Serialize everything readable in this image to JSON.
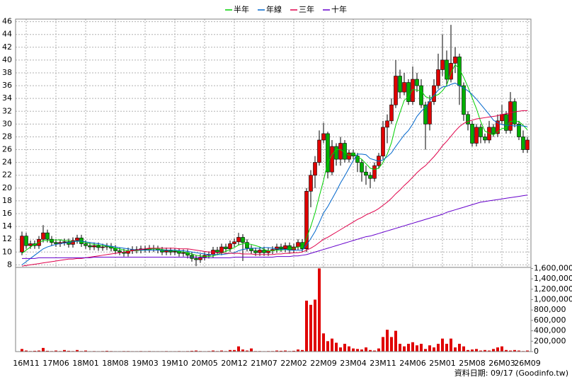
{
  "chart_data": {
    "type": "candlestick",
    "legend": "top",
    "grid": true,
    "footer": "資料日期: 09/17 (Goodinfo.tw)",
    "up_color": "#e00000",
    "down_color": "#00b000",
    "categories": [
      null,
      "16M11",
      null,
      null,
      null,
      null,
      null,
      null,
      "17M06",
      null,
      null,
      null,
      null,
      null,
      null,
      "18M01",
      null,
      null,
      null,
      null,
      null,
      null,
      "18M08",
      null,
      null,
      null,
      null,
      null,
      null,
      "19M03",
      null,
      null,
      null,
      null,
      null,
      null,
      "19M10",
      null,
      null,
      null,
      null,
      null,
      null,
      "20M05",
      null,
      null,
      null,
      null,
      null,
      null,
      "20M12",
      null,
      null,
      null,
      null,
      null,
      null,
      "21M07",
      null,
      null,
      null,
      null,
      null,
      null,
      "22M02",
      null,
      null,
      null,
      null,
      null,
      null,
      "22M09",
      null,
      null,
      null,
      null,
      null,
      null,
      "23M04",
      null,
      null,
      null,
      null,
      null,
      null,
      "23M11",
      null,
      null,
      null,
      null,
      null,
      null,
      "24M06",
      null,
      null,
      null,
      null,
      null,
      null,
      "25M01",
      null,
      null,
      null,
      null,
      null,
      null,
      "25M08",
      null,
      null,
      null,
      null,
      null,
      null,
      "26M03",
      null,
      null,
      null,
      null,
      null,
      "26M09"
    ],
    "open": [
      10.0,
      12.5,
      11.0,
      11.3,
      11.0,
      12.0,
      13.0,
      12.0,
      11.5,
      11.3,
      11.5,
      11.6,
      11.2,
      11.8,
      12.2,
      11.3,
      11.0,
      10.8,
      11.0,
      10.7,
      10.8,
      10.9,
      10.6,
      10.2,
      10.0,
      9.8,
      10.2,
      10.4,
      10.3,
      10.5,
      10.4,
      10.6,
      10.5,
      10.3,
      10.0,
      10.2,
      10.0,
      10.1,
      9.8,
      9.9,
      9.5,
      9.0,
      8.8,
      9.2,
      9.5,
      9.6,
      10.3,
      10.0,
      10.8,
      10.5,
      11.3,
      11.6,
      12.3,
      11.5,
      10.6,
      10.2,
      9.9,
      10.3,
      9.9,
      10.2,
      10.4,
      10.8,
      10.5,
      11.0,
      10.3,
      10.8,
      11.5,
      10.5,
      19.5,
      22.0,
      24.0,
      27.5,
      28.5,
      22.5,
      26.5,
      24.5,
      27.0,
      24.5,
      25.5,
      25.0,
      24.0,
      22.5,
      22.0,
      21.5,
      23.5,
      25.0,
      29.5,
      30.5,
      33.0,
      37.5,
      35.0,
      36.5,
      33.5,
      37.0,
      36.0,
      33.0,
      30.0,
      33.5,
      36.0,
      38.5,
      40.0,
      37.0,
      39.5,
      40.5,
      36.0,
      31.5,
      30.0,
      27.0,
      29.5,
      28.0,
      27.5,
      29.5,
      28.5,
      30.5,
      31.5,
      29.0,
      33.5,
      30.0,
      28.0,
      26.0
    ],
    "high": [
      13.2,
      13.0,
      11.8,
      11.8,
      12.5,
      14.2,
      13.5,
      12.5,
      12.0,
      12.0,
      12.1,
      12.1,
      12.3,
      12.7,
      12.7,
      11.8,
      11.5,
      11.5,
      11.5,
      11.3,
      11.4,
      11.4,
      11.1,
      10.7,
      10.5,
      10.7,
      10.9,
      10.9,
      11.0,
      11.0,
      11.1,
      11.1,
      11.0,
      10.8,
      10.7,
      10.7,
      10.6,
      10.6,
      10.4,
      10.4,
      10.0,
      9.5,
      9.7,
      10.0,
      10.1,
      10.8,
      10.8,
      11.3,
      11.3,
      11.8,
      12.1,
      13.0,
      12.8,
      12.0,
      11.1,
      10.7,
      10.8,
      10.8,
      10.7,
      10.9,
      11.3,
      11.3,
      11.5,
      11.5,
      11.3,
      12.0,
      12.0,
      20.0,
      22.8,
      25.0,
      29.0,
      30.2,
      28.8,
      27.5,
      27.0,
      28.0,
      27.5,
      26.0,
      26.0,
      25.5,
      24.5,
      23.5,
      22.5,
      24.0,
      25.5,
      30.5,
      31.5,
      34.0,
      40.0,
      38.5,
      38.0,
      37.0,
      39.0,
      38.0,
      37.0,
      33.5,
      34.5,
      37.0,
      41.0,
      44.0,
      41.5,
      45.5,
      42.0,
      41.0,
      36.5,
      32.0,
      30.5,
      30.0,
      30.0,
      28.5,
      30.5,
      30.0,
      31.5,
      33.0,
      32.0,
      35.0,
      34.0,
      30.5,
      29.0,
      28.0
    ],
    "low": [
      9.5,
      10.5,
      10.5,
      10.5,
      10.5,
      11.5,
      11.5,
      11.0,
      10.8,
      10.8,
      11.0,
      10.7,
      10.7,
      11.3,
      10.8,
      10.5,
      10.3,
      10.3,
      10.2,
      10.2,
      10.3,
      10.1,
      9.7,
      9.5,
      9.3,
      9.3,
      9.7,
      9.8,
      9.8,
      9.9,
      9.9,
      10.0,
      9.8,
      9.5,
      9.5,
      9.5,
      9.5,
      9.3,
      9.3,
      9.0,
      8.5,
      7.8,
      8.3,
      8.7,
      9.0,
      9.1,
      9.5,
      9.5,
      10.0,
      10.0,
      10.8,
      11.1,
      8.6,
      10.1,
      9.7,
      9.4,
      9.4,
      9.4,
      9.4,
      9.7,
      9.9,
      10.0,
      10.0,
      9.8,
      9.8,
      10.3,
      10.0,
      10.0,
      17.0,
      20.0,
      23.5,
      27.0,
      21.5,
      22.0,
      23.5,
      23.5,
      24.0,
      24.0,
      24.5,
      22.5,
      21.0,
      20.5,
      20.0,
      21.0,
      23.0,
      24.5,
      27.0,
      30.0,
      32.5,
      34.0,
      34.5,
      33.0,
      33.0,
      35.0,
      32.5,
      26.0,
      29.0,
      33.0,
      35.5,
      37.5,
      36.0,
      36.5,
      38.0,
      33.0,
      30.5,
      29.0,
      26.5,
      26.5,
      27.0,
      27.0,
      27.0,
      28.0,
      28.0,
      30.0,
      28.5,
      28.5,
      29.5,
      27.5,
      25.5,
      25.5
    ],
    "close": [
      12.5,
      11.0,
      11.3,
      11.0,
      12.0,
      13.0,
      12.0,
      11.5,
      11.3,
      11.5,
      11.6,
      11.2,
      11.8,
      12.2,
      11.3,
      11.0,
      10.8,
      11.0,
      10.7,
      10.8,
      10.9,
      10.6,
      10.2,
      10.0,
      9.8,
      10.2,
      10.4,
      10.3,
      10.5,
      10.4,
      10.6,
      10.5,
      10.3,
      10.0,
      10.2,
      10.0,
      10.1,
      9.8,
      9.9,
      9.5,
      9.0,
      8.8,
      9.2,
      9.5,
      9.6,
      10.3,
      10.0,
      10.8,
      10.5,
      11.3,
      11.6,
      12.3,
      11.5,
      10.6,
      10.2,
      9.9,
      10.3,
      9.9,
      10.2,
      10.4,
      10.8,
      10.5,
      11.0,
      10.3,
      10.8,
      11.5,
      10.5,
      19.5,
      22.0,
      24.0,
      27.5,
      28.5,
      22.5,
      26.5,
      24.5,
      27.0,
      24.5,
      25.5,
      25.0,
      24.0,
      22.5,
      22.0,
      21.5,
      23.5,
      25.0,
      29.5,
      30.5,
      33.0,
      37.5,
      35.0,
      36.5,
      33.5,
      37.0,
      36.0,
      33.0,
      30.0,
      33.5,
      36.0,
      38.5,
      40.0,
      37.0,
      39.5,
      40.5,
      36.0,
      31.5,
      30.0,
      27.0,
      29.5,
      28.0,
      27.5,
      29.5,
      28.5,
      30.5,
      31.5,
      29.0,
      33.5,
      30.0,
      28.0,
      26.0,
      27.5
    ],
    "series": [
      {
        "name": "半年",
        "color": "#00d000",
        "values": [
          9.8,
          10.3,
          10.8,
          11.2,
          11.5,
          11.8,
          11.8,
          11.9,
          11.9,
          11.9,
          11.8,
          11.8,
          11.6,
          11.7,
          11.6,
          11.5,
          11.3,
          11.2,
          11.1,
          11.0,
          10.9,
          10.8,
          10.6,
          10.5,
          10.3,
          10.2,
          10.2,
          10.2,
          10.3,
          10.3,
          10.4,
          10.5,
          10.5,
          10.4,
          10.3,
          10.3,
          10.2,
          10.1,
          10.0,
          9.9,
          9.7,
          9.5,
          9.4,
          9.3,
          9.3,
          9.4,
          9.6,
          9.9,
          10.1,
          10.4,
          10.7,
          11.1,
          11.3,
          11.3,
          11.2,
          11.0,
          10.8,
          10.4,
          10.2,
          10.2,
          10.3,
          10.3,
          10.4,
          10.5,
          10.6,
          10.8,
          10.8,
          12.2,
          14.0,
          16.1,
          18.7,
          21.2,
          24.0,
          25.2,
          26.0,
          26.0,
          25.6,
          25.1,
          25.5,
          24.9,
          24.5,
          23.8,
          23.1,
          22.9,
          23.1,
          24.0,
          25.3,
          27.1,
          29.8,
          31.8,
          33.7,
          34.3,
          35.4,
          35.3,
          35.2,
          34.3,
          34.0,
          34.4,
          34.6,
          35.2,
          36.1,
          38.0,
          39.3,
          38.6,
          37.3,
          35.8,
          34.1,
          32.4,
          30.4,
          28.9,
          28.6,
          28.3,
          28.8,
          29.3,
          29.4,
          30.4,
          30.5,
          30.4,
          29.8,
          29.1
        ]
      },
      {
        "name": "年線",
        "color": "#0066cc",
        "values": [
          8.0,
          8.5,
          9.0,
          9.5,
          10.0,
          10.5,
          10.8,
          11.0,
          11.2,
          11.3,
          11.4,
          11.5,
          11.6,
          11.7,
          11.7,
          11.6,
          11.5,
          11.4,
          11.3,
          11.2,
          11.0,
          10.9,
          10.8,
          10.7,
          10.6,
          10.5,
          10.4,
          10.3,
          10.3,
          10.3,
          10.3,
          10.3,
          10.3,
          10.3,
          10.3,
          10.3,
          10.3,
          10.2,
          10.2,
          10.1,
          10.0,
          9.9,
          9.8,
          9.7,
          9.6,
          9.6,
          9.6,
          9.6,
          9.7,
          9.8,
          9.9,
          10.2,
          10.4,
          10.5,
          10.6,
          10.6,
          10.6,
          10.7,
          10.7,
          10.6,
          10.5,
          10.4,
          10.4,
          10.3,
          10.3,
          10.3,
          10.3,
          11.1,
          12.1,
          13.2,
          14.6,
          16.1,
          17.1,
          18.3,
          19.5,
          20.8,
          21.9,
          23.1,
          24.3,
          25.3,
          25.3,
          25.2,
          24.6,
          24.4,
          24.2,
          24.4,
          24.9,
          25.5,
          26.5,
          27.4,
          28.3,
          29.0,
          30.0,
          31.2,
          32.0,
          32.6,
          33.6,
          34.5,
          35.3,
          35.8,
          35.9,
          36.2,
          36.4,
          36.0,
          35.6,
          35.2,
          34.6,
          33.9,
          33.1,
          32.3,
          31.5,
          30.6,
          30.2,
          29.9,
          29.8,
          29.8,
          29.7,
          29.8,
          29.7,
          29.6
        ]
      },
      {
        "name": "三年",
        "color": "#e0004a",
        "values": [
          7.8,
          7.9,
          8.0,
          8.1,
          8.2,
          8.3,
          8.4,
          8.5,
          8.6,
          8.7,
          8.8,
          8.9,
          8.9,
          9.0,
          9.0,
          9.1,
          9.2,
          9.3,
          9.4,
          9.5,
          9.6,
          9.7,
          9.8,
          9.9,
          10.0,
          10.1,
          10.2,
          10.3,
          10.4,
          10.5,
          10.6,
          10.6,
          10.6,
          10.6,
          10.6,
          10.6,
          10.6,
          10.5,
          10.5,
          10.5,
          10.4,
          10.3,
          10.2,
          10.1,
          10.0,
          10.0,
          9.9,
          9.9,
          9.8,
          9.8,
          9.8,
          9.8,
          9.7,
          9.7,
          9.7,
          9.6,
          9.6,
          9.6,
          9.6,
          9.6,
          9.7,
          9.7,
          9.8,
          9.8,
          9.9,
          9.9,
          10.0,
          10.3,
          10.6,
          11.0,
          11.5,
          12.0,
          12.3,
          12.7,
          13.1,
          13.5,
          13.9,
          14.3,
          14.7,
          15.1,
          15.4,
          15.8,
          16.1,
          16.4,
          16.8,
          17.3,
          17.8,
          18.4,
          19.1,
          19.7,
          20.4,
          21.0,
          21.7,
          22.4,
          23.0,
          23.5,
          24.2,
          24.9,
          25.7,
          26.6,
          27.3,
          28.1,
          28.9,
          29.6,
          30.1,
          30.4,
          30.6,
          30.8,
          30.9,
          31.0,
          31.1,
          31.2,
          31.3,
          31.5,
          31.6,
          31.8,
          31.9,
          32.0,
          32.1,
          32.1
        ]
      },
      {
        "name": "十年",
        "color": "#6600cc",
        "values": [
          9.0,
          9.0,
          9.0,
          9.0,
          9.1,
          9.1,
          9.1,
          9.1,
          9.1,
          9.1,
          9.1,
          9.1,
          9.1,
          9.1,
          9.1,
          9.1,
          9.1,
          9.2,
          9.2,
          9.2,
          9.2,
          9.2,
          9.2,
          9.2,
          9.2,
          9.2,
          9.2,
          9.2,
          9.2,
          9.2,
          9.2,
          9.2,
          9.2,
          9.2,
          9.2,
          9.2,
          9.2,
          9.2,
          9.2,
          9.2,
          9.2,
          9.2,
          9.1,
          9.1,
          9.1,
          9.1,
          9.1,
          9.1,
          9.1,
          9.1,
          9.2,
          9.2,
          9.2,
          9.2,
          9.2,
          9.2,
          9.2,
          9.2,
          9.2,
          9.2,
          9.3,
          9.3,
          9.3,
          9.3,
          9.4,
          9.4,
          9.5,
          9.6,
          9.8,
          10.0,
          10.2,
          10.4,
          10.6,
          10.8,
          11.0,
          11.2,
          11.4,
          11.6,
          11.8,
          12.0,
          12.2,
          12.4,
          12.5,
          12.7,
          12.9,
          13.1,
          13.3,
          13.5,
          13.7,
          13.9,
          14.1,
          14.3,
          14.5,
          14.7,
          14.9,
          15.1,
          15.3,
          15.5,
          15.7,
          15.9,
          16.2,
          16.4,
          16.6,
          16.8,
          17.0,
          17.2,
          17.4,
          17.6,
          17.8,
          17.9,
          18.0,
          18.1,
          18.2,
          18.3,
          18.4,
          18.5,
          18.6,
          18.7,
          18.8,
          18.9
        ]
      }
    ],
    "volume": {
      "axis": "y2",
      "color": "#e00000",
      "values": [
        50000,
        20000,
        10000,
        15000,
        20000,
        70000,
        15000,
        10000,
        20000,
        10000,
        30000,
        15000,
        10000,
        30000,
        10000,
        20000,
        8000,
        10000,
        8000,
        10000,
        15000,
        10000,
        8000,
        8000,
        10000,
        10000,
        8000,
        8000,
        10000,
        8000,
        10000,
        8000,
        8000,
        8000,
        10000,
        8000,
        8000,
        10000,
        8000,
        10000,
        15000,
        20000,
        10000,
        8000,
        10000,
        20000,
        10000,
        20000,
        10000,
        30000,
        30000,
        100000,
        40000,
        20000,
        60000,
        10000,
        10000,
        8000,
        10000,
        10000,
        20000,
        15000,
        20000,
        10000,
        15000,
        40000,
        30000,
        980000,
        900000,
        1000000,
        1600000,
        350000,
        200000,
        250000,
        170000,
        80000,
        150000,
        100000,
        60000,
        50000,
        40000,
        80000,
        30000,
        20000,
        60000,
        280000,
        420000,
        280000,
        400000,
        150000,
        100000,
        150000,
        180000,
        120000,
        150000,
        50000,
        120000,
        80000,
        150000,
        250000,
        150000,
        250000,
        80000,
        150000,
        100000,
        30000,
        40000,
        50000,
        20000,
        30000,
        20000,
        50000,
        80000,
        100000,
        30000,
        20000,
        30000,
        20000,
        10000,
        20000
      ]
    },
    "ylim": [
      7.6,
      46.4
    ],
    "yticks": [
      8,
      10,
      12,
      14,
      16,
      18,
      20,
      22,
      24,
      26,
      28,
      30,
      32,
      34,
      36,
      38,
      40,
      42,
      44,
      46
    ],
    "y2lim": [
      0,
      1620000
    ],
    "y2ticks": [
      0,
      {
        "value": 200000,
        "label": "200,000"
      },
      {
        "value": 400000,
        "label": "400,000"
      },
      {
        "value": 600000,
        "label": "600,000"
      },
      {
        "value": 800000,
        "label": "800,000"
      },
      {
        "value": 1000000,
        "label": "1,000,000"
      },
      {
        "value": 1200000,
        "label": "1,200,000"
      },
      {
        "value": 1400000,
        "label": "1,400,000"
      },
      {
        "value": 1600000,
        "label": "1,600,000"
      }
    ]
  }
}
